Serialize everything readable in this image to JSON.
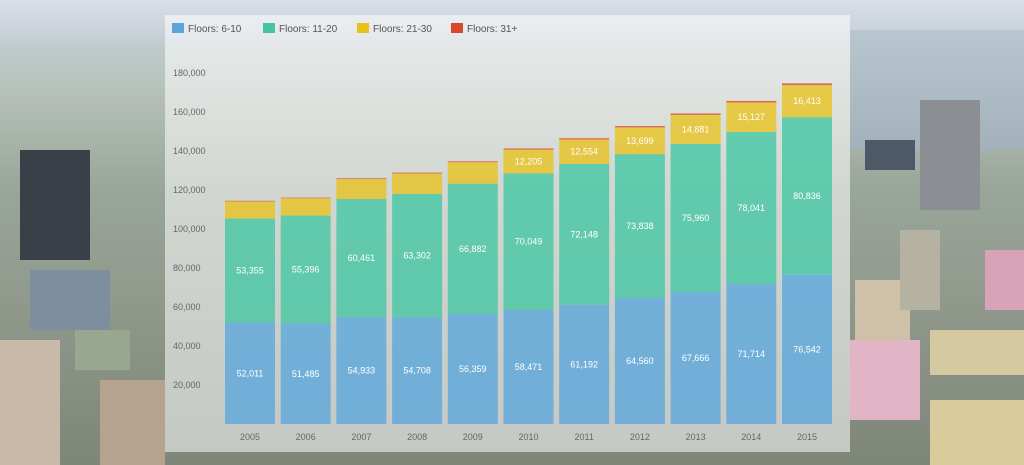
{
  "colors": {
    "floors_6_10": "#5aa6dc",
    "floors_11_20": "#43c7a2",
    "floors_21_30": "#e8c21c",
    "floors_31_plus": "#d9482c"
  },
  "chart_data": {
    "type": "bar",
    "stacked": true,
    "title": "",
    "xlabel": "",
    "ylabel": "",
    "categories": [
      "2005",
      "2006",
      "2007",
      "2008",
      "2009",
      "2010",
      "2011",
      "2012",
      "2013",
      "2014",
      "2015"
    ],
    "series": [
      {
        "name": "Floors: 6-10",
        "values": [
          52011,
          51485,
          54933,
          54708,
          56359,
          58471,
          61192,
          64560,
          67666,
          71714,
          76542
        ]
      },
      {
        "name": "Floors: 11-20",
        "values": [
          53355,
          55396,
          60461,
          63302,
          66882,
          70049,
          72148,
          73838,
          75960,
          78041,
          80836
        ]
      },
      {
        "name": "Floors: 21-30",
        "values": [
          8800,
          8900,
          10200,
          10500,
          11000,
          12205,
          12554,
          13699,
          14881,
          15127,
          16413
        ]
      },
      {
        "name": "Floors: 31+",
        "values": [
          300,
          320,
          400,
          420,
          480,
          600,
          650,
          700,
          750,
          800,
          900
        ]
      }
    ],
    "bar_labels": {
      "Floors: 6-10": [
        "52,011",
        "51,485",
        "54,933",
        "54,708",
        "56,359",
        "58,471",
        "61,192",
        "64,560",
        "67,666",
        "71,714",
        "76,542"
      ],
      "Floors: 11-20": [
        "53,355",
        "55,396",
        "60,461",
        "63,302",
        "66,882",
        "70,049",
        "72,148",
        "73,838",
        "75,960",
        "78,041",
        "80,836"
      ],
      "Floors: 21-30": [
        "",
        "",
        "",
        "",
        "",
        "12,205",
        "12,554",
        "13,699",
        "14,881",
        "15,127",
        "16,413"
      ],
      "Floors: 31+": [
        "",
        "",
        "",
        "",
        "",
        "",
        "",
        "",
        "",
        "",
        ""
      ]
    },
    "yticks": [
      "20,000",
      "40,000",
      "60,000",
      "80,000",
      "100,000",
      "120,000",
      "140,000",
      "160,000",
      "180,000"
    ],
    "ylim": [
      0,
      190000
    ],
    "legend": "top-left",
    "grid": false
  }
}
